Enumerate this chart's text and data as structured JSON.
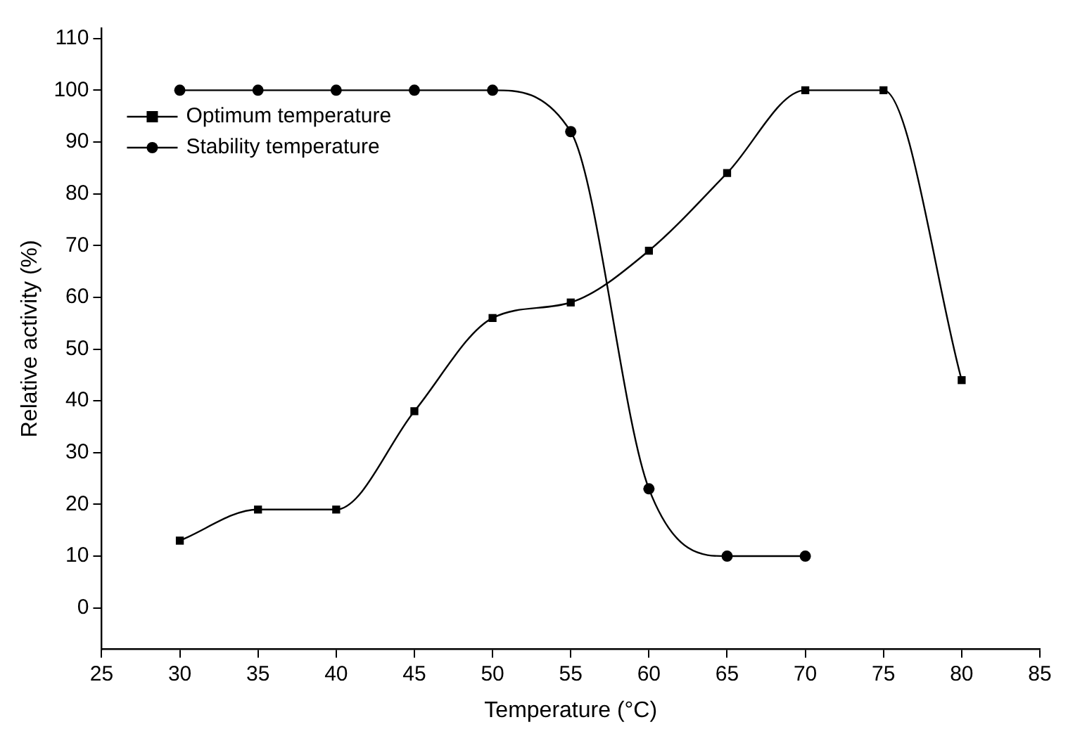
{
  "chart_data": {
    "type": "line",
    "xlabel": "Temperature (°C)",
    "ylabel": "Relative activity (%)",
    "xlim": [
      25,
      85
    ],
    "xticks": [
      25,
      30,
      35,
      40,
      45,
      50,
      55,
      60,
      65,
      70,
      75,
      80,
      85
    ],
    "ylim": [
      -8,
      112
    ],
    "yticks": [
      0,
      10,
      20,
      30,
      40,
      50,
      60,
      70,
      80,
      90,
      100,
      110
    ],
    "grid": false,
    "legend": "top left",
    "line_style": "solid",
    "series": [
      {
        "name": "Optimum temperature",
        "color": "#000000",
        "marker": "square",
        "x": [
          30,
          35,
          40,
          45,
          50,
          55,
          60,
          65,
          70,
          75,
          80
        ],
        "values": [
          13,
          19,
          19,
          38,
          56,
          59,
          69,
          84,
          100,
          100,
          44
        ]
      },
      {
        "name": "Stability temperature",
        "color": "#000000",
        "marker": "circle",
        "x": [
          30,
          35,
          40,
          45,
          50,
          55,
          60,
          65,
          70
        ],
        "values": [
          100,
          100,
          100,
          100,
          100,
          92,
          23,
          10,
          10
        ]
      }
    ]
  }
}
